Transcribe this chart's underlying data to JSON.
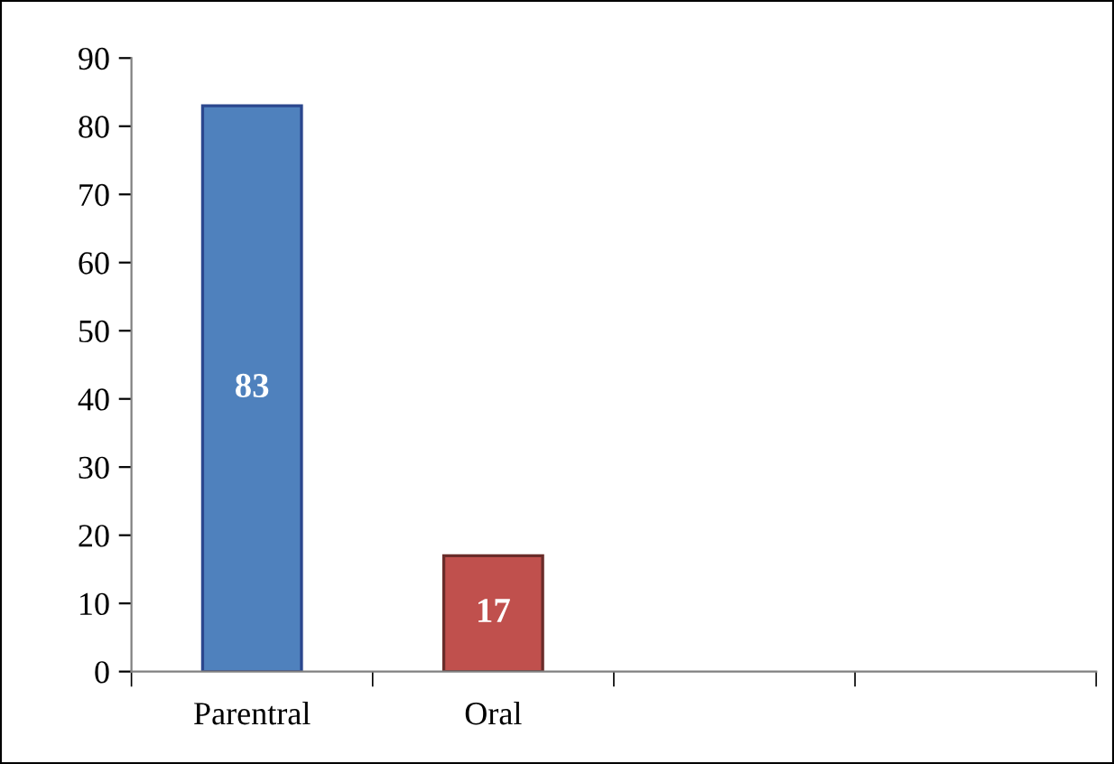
{
  "chart_data": {
    "type": "bar",
    "categories": [
      "Parentral",
      "Oral",
      null,
      null
    ],
    "values": [
      83,
      17,
      null,
      null
    ],
    "colors": [
      "#4f81bd",
      "#c0504d",
      "#4f81bd",
      "#4f81bd"
    ],
    "ylim": [
      0,
      90
    ],
    "yticks": [
      0,
      10,
      20,
      30,
      40,
      50,
      60,
      70,
      80,
      90
    ],
    "data_labels": true,
    "grid": false,
    "legend": false
  }
}
